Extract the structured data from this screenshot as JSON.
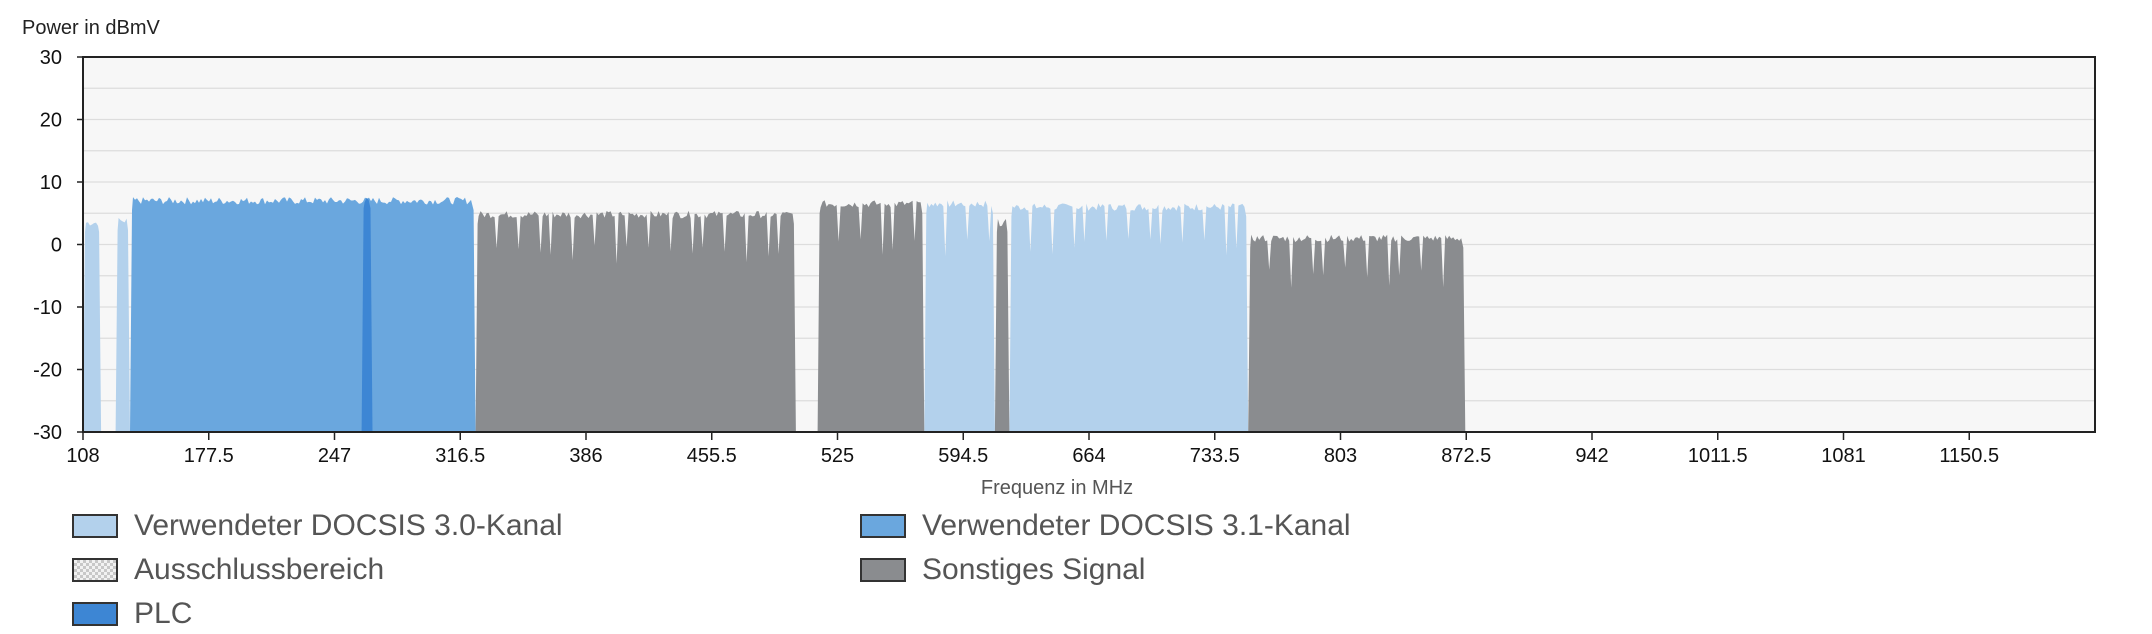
{
  "chart_data": {
    "type": "area",
    "ylabel": "Power in dBmV",
    "xlabel": "Frequenz in MHz",
    "ylim": [
      -30,
      30
    ],
    "yticks": [
      "30",
      "20",
      "10",
      "0",
      "-10",
      "-20",
      "-30"
    ],
    "xlim": [
      108,
      1220
    ],
    "xticks": [
      "108",
      "177.5",
      "247",
      "316.5",
      "386",
      "455.5",
      "525",
      "594.5",
      "664",
      "733.5",
      "803",
      "872.5",
      "942",
      "1011.5",
      "1081",
      "1150.5"
    ],
    "grid": true,
    "series": [
      {
        "name": "Verwendeter DOCSIS 3.0-Kanal",
        "color": "#b3d1ec",
        "segments": [
          {
            "x": [
              108,
              118
            ],
            "level": 3.5
          },
          {
            "x": [
              126,
              134
            ],
            "level": 3.8
          },
          {
            "x": [
              573,
              612
            ],
            "level": 6.5
          },
          {
            "x": [
              620,
              752
            ],
            "level": 6.0
          }
        ]
      },
      {
        "name": "Verwendeter DOCSIS 3.1-Kanal",
        "color": "#6aa7de",
        "segments": [
          {
            "x": [
              134,
              325
            ],
            "level": 7.0
          }
        ]
      },
      {
        "name": "Ausschlussbereich",
        "color": "#e8e8e8",
        "segments": []
      },
      {
        "name": "PLC",
        "color": "#3d86d4",
        "segments": [
          {
            "x": [
              262,
              268
            ],
            "level": 7.3
          }
        ]
      },
      {
        "name": "Sonstiges Signal",
        "color": "#8a8c8f",
        "segments": [
          {
            "x": [
              325,
              502
            ],
            "level": 4.8
          },
          {
            "x": [
              514,
              573
            ],
            "level": 6.5
          },
          {
            "x": [
              612,
              620
            ],
            "level": 3.5
          },
          {
            "x": [
              752,
              872
            ],
            "level": 1.0
          }
        ]
      }
    ]
  },
  "legend": {
    "docsis30": "Verwendeter DOCSIS 3.0-Kanal",
    "docsis31": "Verwendeter DOCSIS 3.1-Kanal",
    "exclusion": "Ausschlussbereich",
    "other": "Sonstiges Signal",
    "plc": "PLC"
  },
  "colors": {
    "docsis30": "#b3d1ec",
    "docsis31": "#6aa7de",
    "plc": "#3d86d4",
    "other": "#8a8c8f",
    "plot_bg": "#f7f7f7",
    "grid": "#dddddd"
  }
}
